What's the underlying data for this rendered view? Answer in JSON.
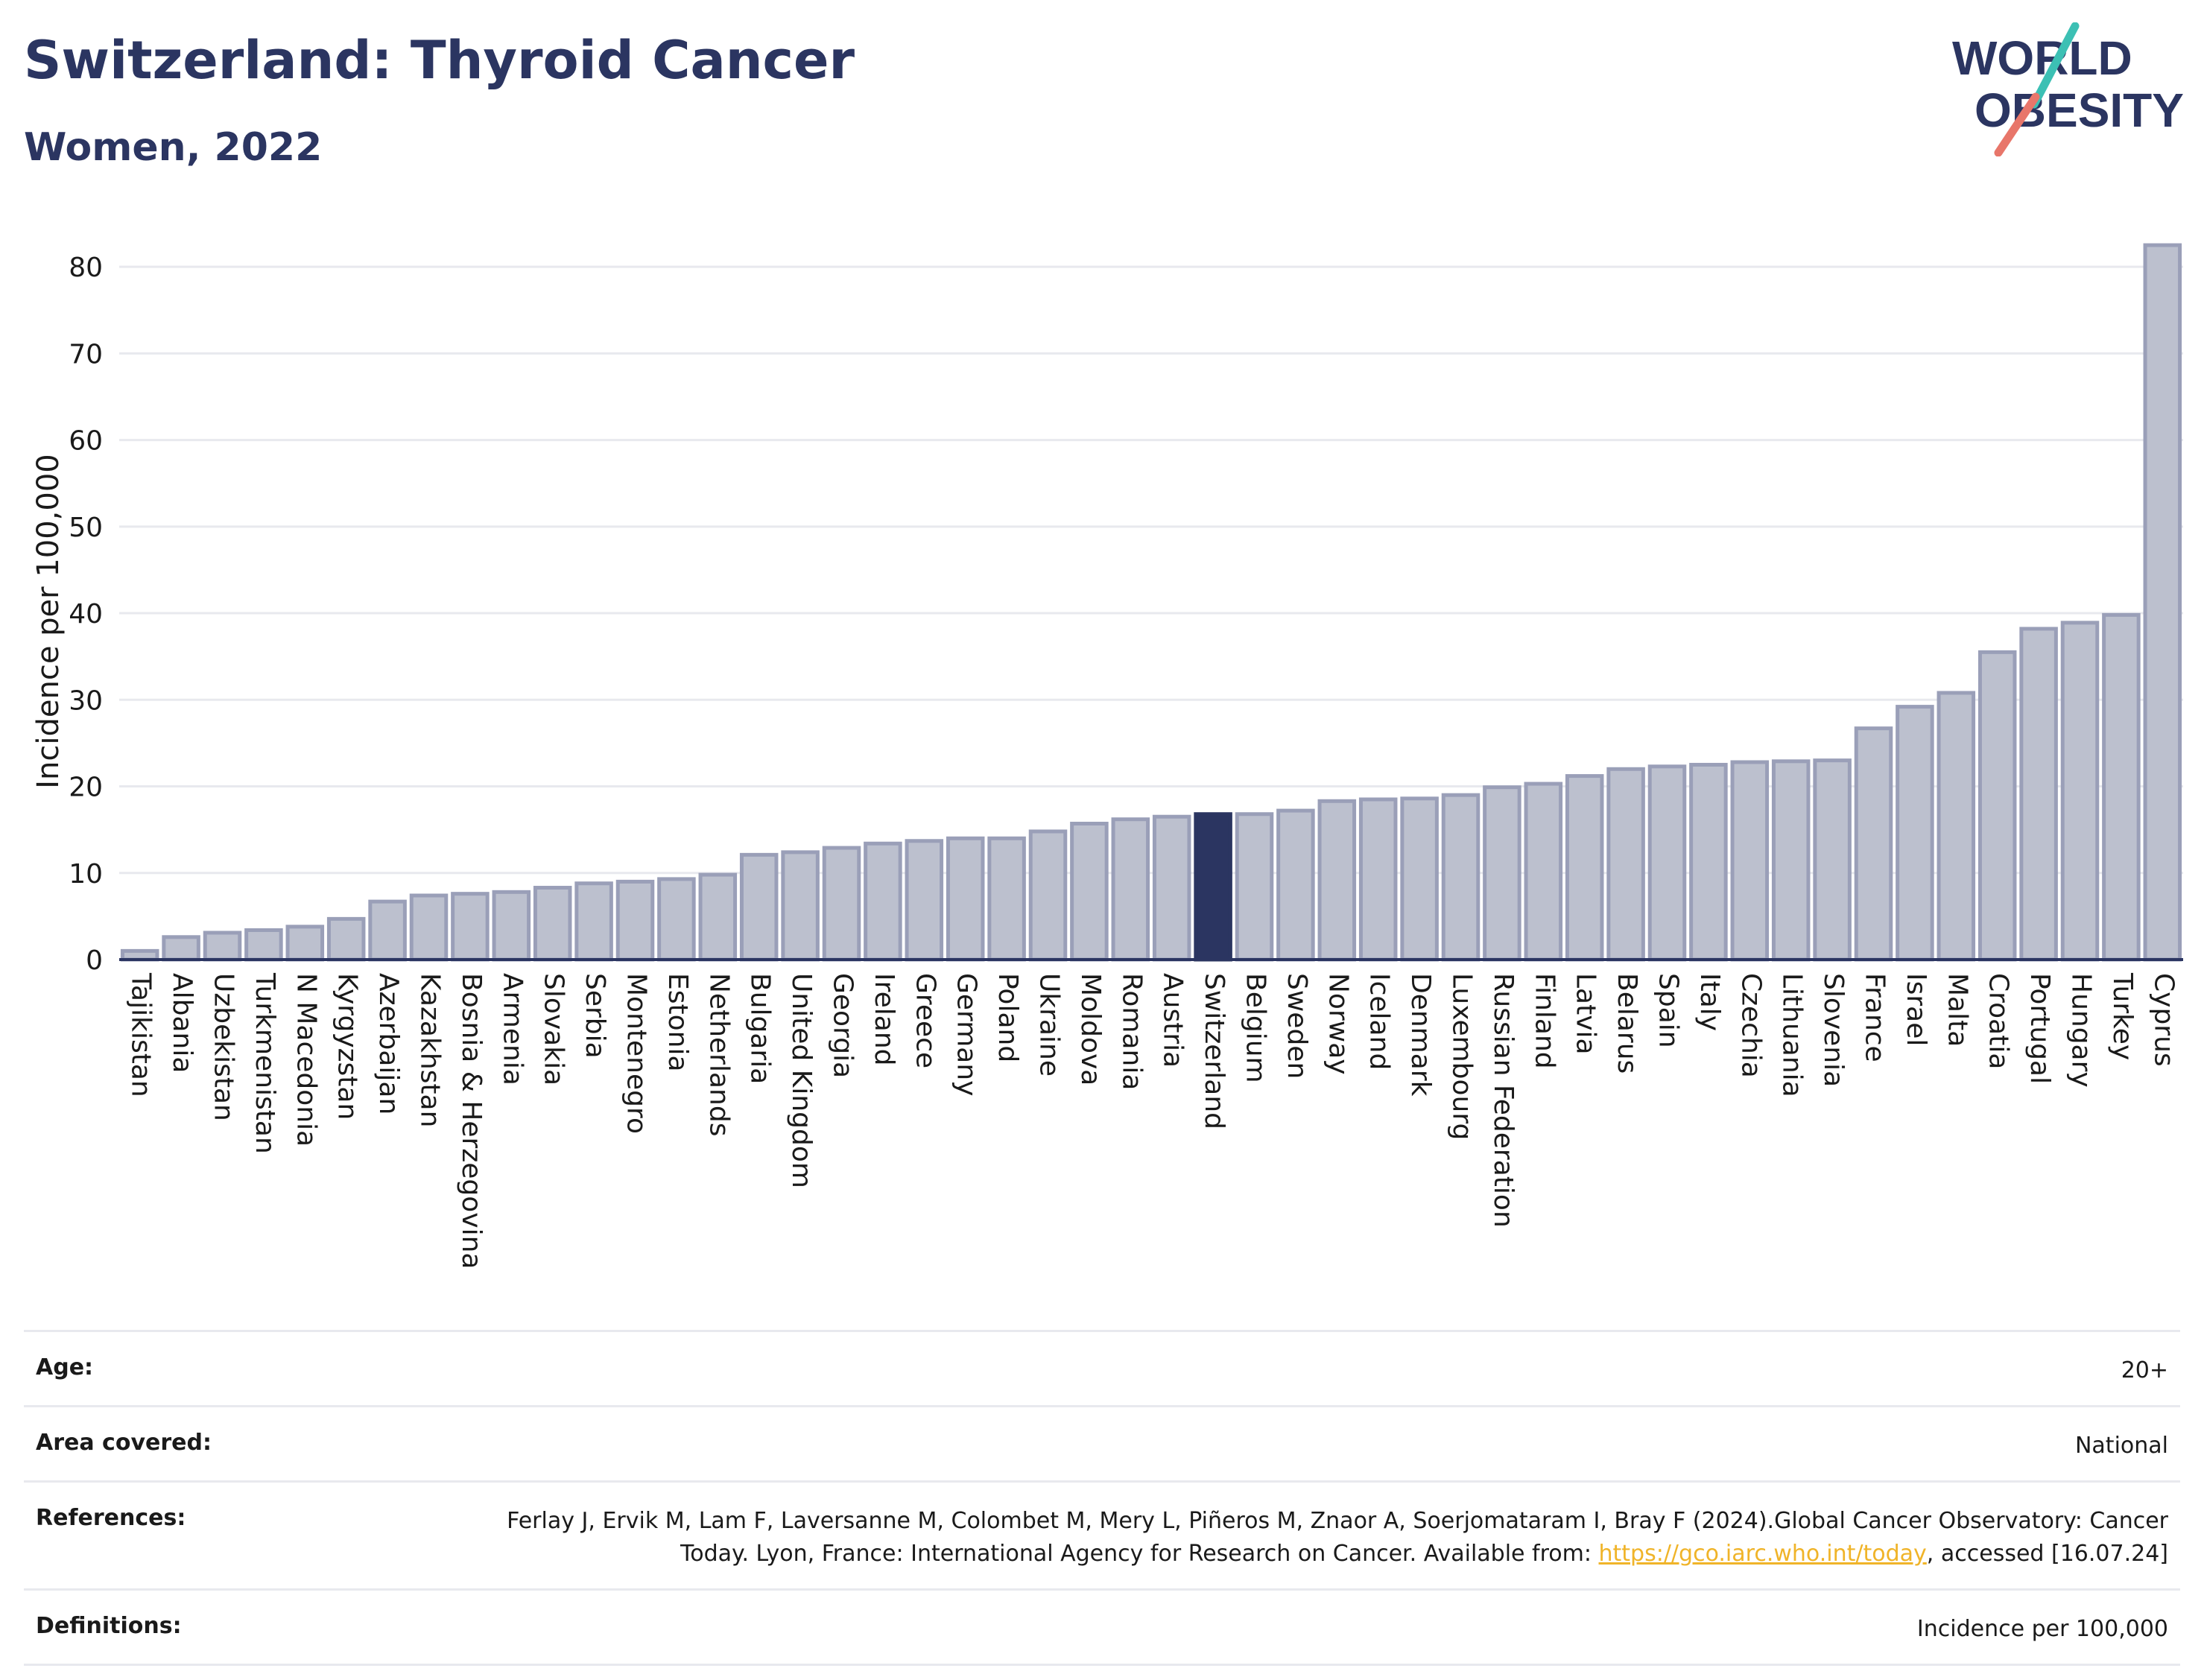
{
  "header": {
    "title": "Switzerland: Thyroid Cancer",
    "subtitle": "Women, 2022"
  },
  "logo": {
    "line1": "WORLD",
    "line2": "OBESITY",
    "colors": {
      "text": "#2b3561",
      "slash_teal": "#3cc0b4",
      "slash_coral": "#e8766a"
    }
  },
  "chart_data": {
    "type": "bar",
    "title": "Switzerland: Thyroid Cancer",
    "subtitle": "Women, 2022",
    "ylabel": "Incidence per 100,000",
    "xlabel": "",
    "ylim": [
      0,
      85
    ],
    "yticks": [
      0,
      10,
      20,
      30,
      40,
      50,
      60,
      70,
      80
    ],
    "grid": true,
    "highlight": "Switzerland",
    "colors": {
      "bar": "#bcc0ce",
      "bar_border": "#9a9fb8",
      "highlight": "#2b3561",
      "grid": "#e8e9ee",
      "axis": "#2b3561"
    },
    "categories": [
      "Tajikistan",
      "Albania",
      "Uzbekistan",
      "Turkmenistan",
      "N Macedonia",
      "Kyrgyzstan",
      "Azerbaijan",
      "Kazakhstan",
      "Bosnia & Herzegovina",
      "Armenia",
      "Slovakia",
      "Serbia",
      "Montenegro",
      "Estonia",
      "Netherlands",
      "Bulgaria",
      "United Kingdom",
      "Georgia",
      "Ireland",
      "Greece",
      "Germany",
      "Poland",
      "Ukraine",
      "Moldova",
      "Romania",
      "Austria",
      "Switzerland",
      "Belgium",
      "Sweden",
      "Norway",
      "Iceland",
      "Denmark",
      "Luxembourg",
      "Russian Federation",
      "Finland",
      "Latvia",
      "Belarus",
      "Spain",
      "Italy",
      "Czechia",
      "Lithuania",
      "Slovenia",
      "France",
      "Israel",
      "Malta",
      "Croatia",
      "Portugal",
      "Hungary",
      "Turkey",
      "Cyprus"
    ],
    "values": [
      1.0,
      2.6,
      3.1,
      3.4,
      3.8,
      4.7,
      6.7,
      7.4,
      7.6,
      7.8,
      8.3,
      8.8,
      9.0,
      9.3,
      9.8,
      12.1,
      12.4,
      12.9,
      13.4,
      13.7,
      14.0,
      14.0,
      14.8,
      15.7,
      16.2,
      16.5,
      16.8,
      16.8,
      17.2,
      18.3,
      18.5,
      18.6,
      19.0,
      19.9,
      20.3,
      21.2,
      22.0,
      22.3,
      22.5,
      22.8,
      22.9,
      23.0,
      26.7,
      29.2,
      30.8,
      35.5,
      38.2,
      38.9,
      39.8,
      82.5
    ]
  },
  "meta": {
    "age_label": "Age:",
    "age_value": "20+",
    "area_label": "Area covered:",
    "area_value": "National",
    "references_label": "References:",
    "references_text_1": "Ferlay J, Ervik M, Lam F, Laversanne M, Colombet M, Mery L, Piñeros M, Znaor A, Soerjomataram I, Bray F (2024).Global Cancer Observatory: Cancer Today. Lyon, France: International Agency for Research on Cancer. Available from: ",
    "references_link": "https://gco.iarc.who.int/today",
    "references_text_2": ", accessed [16.07.24]",
    "definitions_label": "Definitions:",
    "definitions_value": "Incidence per 100,000"
  }
}
